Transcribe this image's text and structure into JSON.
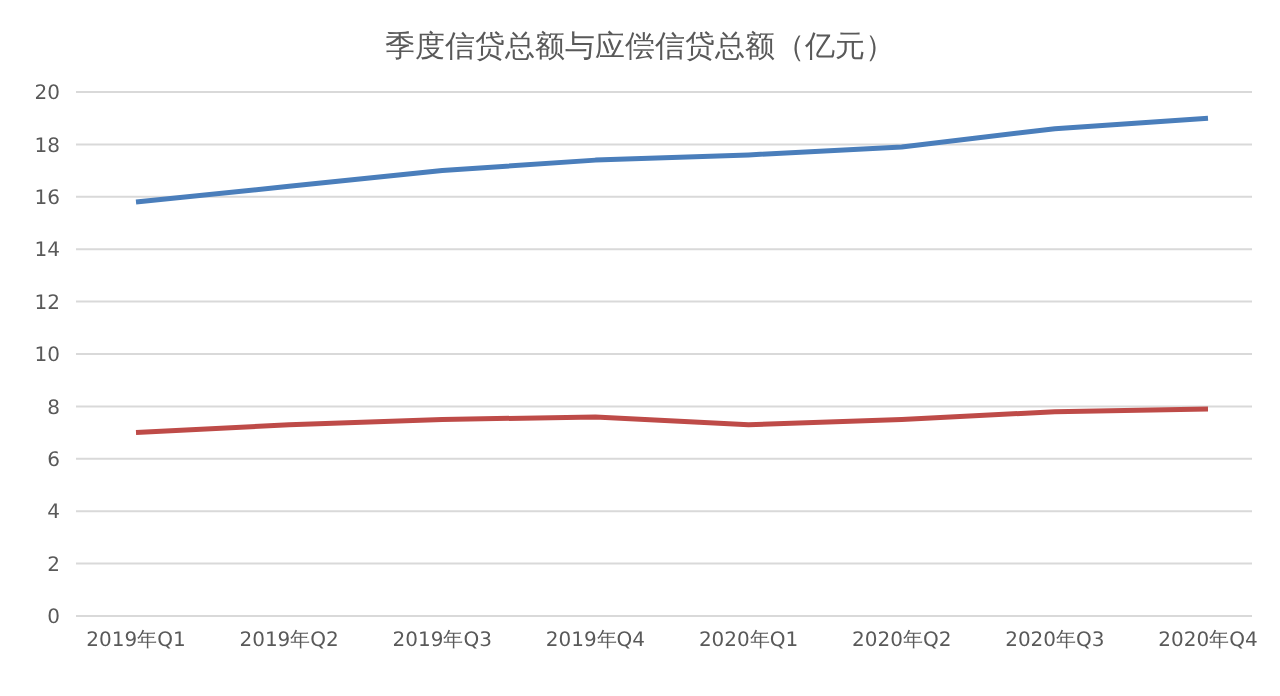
{
  "chart_data": {
    "type": "line",
    "title": "季度信贷总额与应偿信贷总额（亿元）",
    "categories": [
      "2019年Q1",
      "2019年Q2",
      "2019年Q3",
      "2019年Q4",
      "2020年Q1",
      "2020年Q2",
      "2020年Q3",
      "2020年Q4"
    ],
    "series": [
      {
        "color": "#4a7ebb",
        "values": [
          15.8,
          16.4,
          17.0,
          17.4,
          17.6,
          17.9,
          18.6,
          19.0
        ]
      },
      {
        "color": "#be4b48",
        "values": [
          7.0,
          7.3,
          7.5,
          7.6,
          7.3,
          7.5,
          7.8,
          7.9
        ]
      }
    ],
    "ylim": [
      0,
      20
    ],
    "yticks": [
      0,
      2,
      4,
      6,
      8,
      10,
      12,
      14,
      16,
      18,
      20
    ],
    "grid": "y",
    "legend": false,
    "marker": "none",
    "line_style": "solid"
  }
}
